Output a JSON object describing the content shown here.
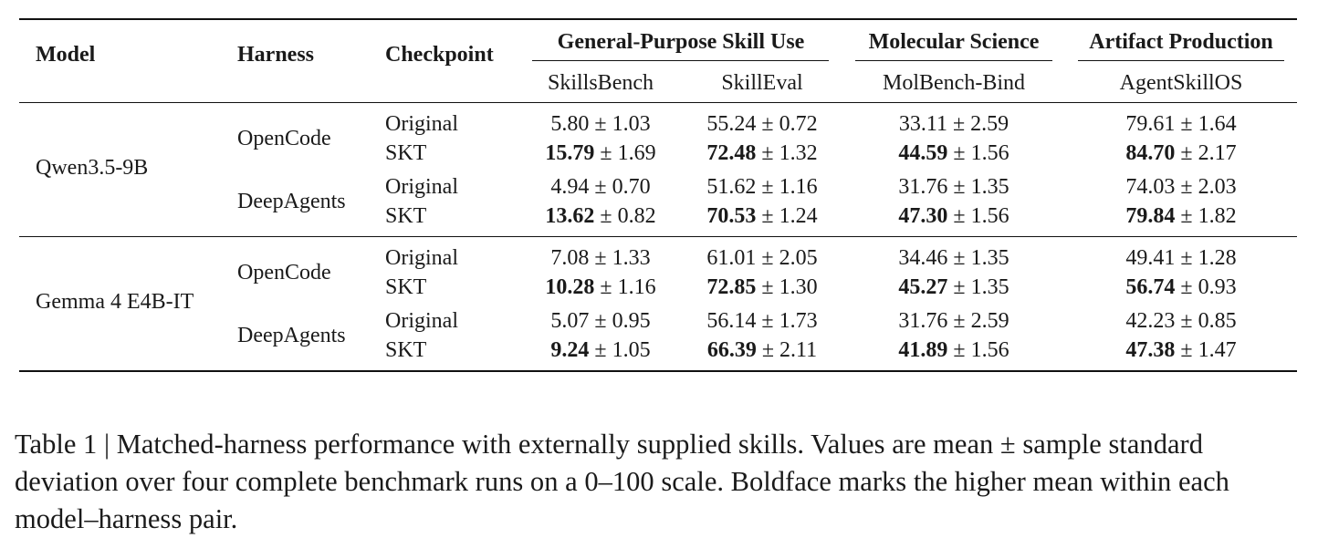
{
  "table": {
    "headers": {
      "model": "Model",
      "harness": "Harness",
      "checkpoint": "Checkpoint",
      "groups": [
        {
          "label": "General-Purpose Skill Use",
          "benchmarks": [
            "SkillsBench",
            "SkillEval"
          ]
        },
        {
          "label": "Molecular Science",
          "benchmarks": [
            "MolBench-Bind"
          ]
        },
        {
          "label": "Artifact Production",
          "benchmarks": [
            "AgentSkillOS"
          ]
        }
      ]
    },
    "blocks": [
      {
        "model": "Qwen3.5-9B",
        "harnesses": [
          {
            "name": "OpenCode",
            "rows": [
              {
                "checkpoint": "Original",
                "cells": [
                  {
                    "mean": "5.80",
                    "sd": "± 1.03",
                    "bold": false
                  },
                  {
                    "mean": "55.24",
                    "sd": "± 0.72",
                    "bold": false
                  },
                  {
                    "mean": "33.11",
                    "sd": "± 2.59",
                    "bold": false
                  },
                  {
                    "mean": "79.61",
                    "sd": "± 1.64",
                    "bold": false
                  }
                ]
              },
              {
                "checkpoint": "SKT",
                "cells": [
                  {
                    "mean": "15.79",
                    "sd": "± 1.69",
                    "bold": true
                  },
                  {
                    "mean": "72.48",
                    "sd": "± 1.32",
                    "bold": true
                  },
                  {
                    "mean": "44.59",
                    "sd": "± 1.56",
                    "bold": true
                  },
                  {
                    "mean": "84.70",
                    "sd": "± 2.17",
                    "bold": true
                  }
                ]
              }
            ]
          },
          {
            "name": "DeepAgents",
            "rows": [
              {
                "checkpoint": "Original",
                "cells": [
                  {
                    "mean": "4.94",
                    "sd": "± 0.70",
                    "bold": false
                  },
                  {
                    "mean": "51.62",
                    "sd": "± 1.16",
                    "bold": false
                  },
                  {
                    "mean": "31.76",
                    "sd": "± 1.35",
                    "bold": false
                  },
                  {
                    "mean": "74.03",
                    "sd": "± 2.03",
                    "bold": false
                  }
                ]
              },
              {
                "checkpoint": "SKT",
                "cells": [
                  {
                    "mean": "13.62",
                    "sd": "± 0.82",
                    "bold": true
                  },
                  {
                    "mean": "70.53",
                    "sd": "± 1.24",
                    "bold": true
                  },
                  {
                    "mean": "47.30",
                    "sd": "± 1.56",
                    "bold": true
                  },
                  {
                    "mean": "79.84",
                    "sd": "± 1.82",
                    "bold": true
                  }
                ]
              }
            ]
          }
        ]
      },
      {
        "model": "Gemma 4 E4B-IT",
        "harnesses": [
          {
            "name": "OpenCode",
            "rows": [
              {
                "checkpoint": "Original",
                "cells": [
                  {
                    "mean": "7.08",
                    "sd": "± 1.33",
                    "bold": false
                  },
                  {
                    "mean": "61.01",
                    "sd": "± 2.05",
                    "bold": false
                  },
                  {
                    "mean": "34.46",
                    "sd": "± 1.35",
                    "bold": false
                  },
                  {
                    "mean": "49.41",
                    "sd": "± 1.28",
                    "bold": false
                  }
                ]
              },
              {
                "checkpoint": "SKT",
                "cells": [
                  {
                    "mean": "10.28",
                    "sd": "± 1.16",
                    "bold": true
                  },
                  {
                    "mean": "72.85",
                    "sd": "± 1.30",
                    "bold": true
                  },
                  {
                    "mean": "45.27",
                    "sd": "± 1.35",
                    "bold": true
                  },
                  {
                    "mean": "56.74",
                    "sd": "± 0.93",
                    "bold": true
                  }
                ]
              }
            ]
          },
          {
            "name": "DeepAgents",
            "rows": [
              {
                "checkpoint": "Original",
                "cells": [
                  {
                    "mean": "5.07",
                    "sd": "± 0.95",
                    "bold": false
                  },
                  {
                    "mean": "56.14",
                    "sd": "± 1.73",
                    "bold": false
                  },
                  {
                    "mean": "31.76",
                    "sd": "± 2.59",
                    "bold": false
                  },
                  {
                    "mean": "42.23",
                    "sd": "± 0.85",
                    "bold": false
                  }
                ]
              },
              {
                "checkpoint": "SKT",
                "cells": [
                  {
                    "mean": "9.24",
                    "sd": "± 1.05",
                    "bold": true
                  },
                  {
                    "mean": "66.39",
                    "sd": "± 2.11",
                    "bold": true
                  },
                  {
                    "mean": "41.89",
                    "sd": "± 1.56",
                    "bold": true
                  },
                  {
                    "mean": "47.38",
                    "sd": "± 1.47",
                    "bold": true
                  }
                ]
              }
            ]
          }
        ]
      }
    ]
  },
  "caption": "Table 1 | Matched-harness performance with externally supplied skills. Values are mean ± sample standard deviation over four complete benchmark runs on a 0–100 scale. Boldface marks the higher mean within each model–harness pair."
}
